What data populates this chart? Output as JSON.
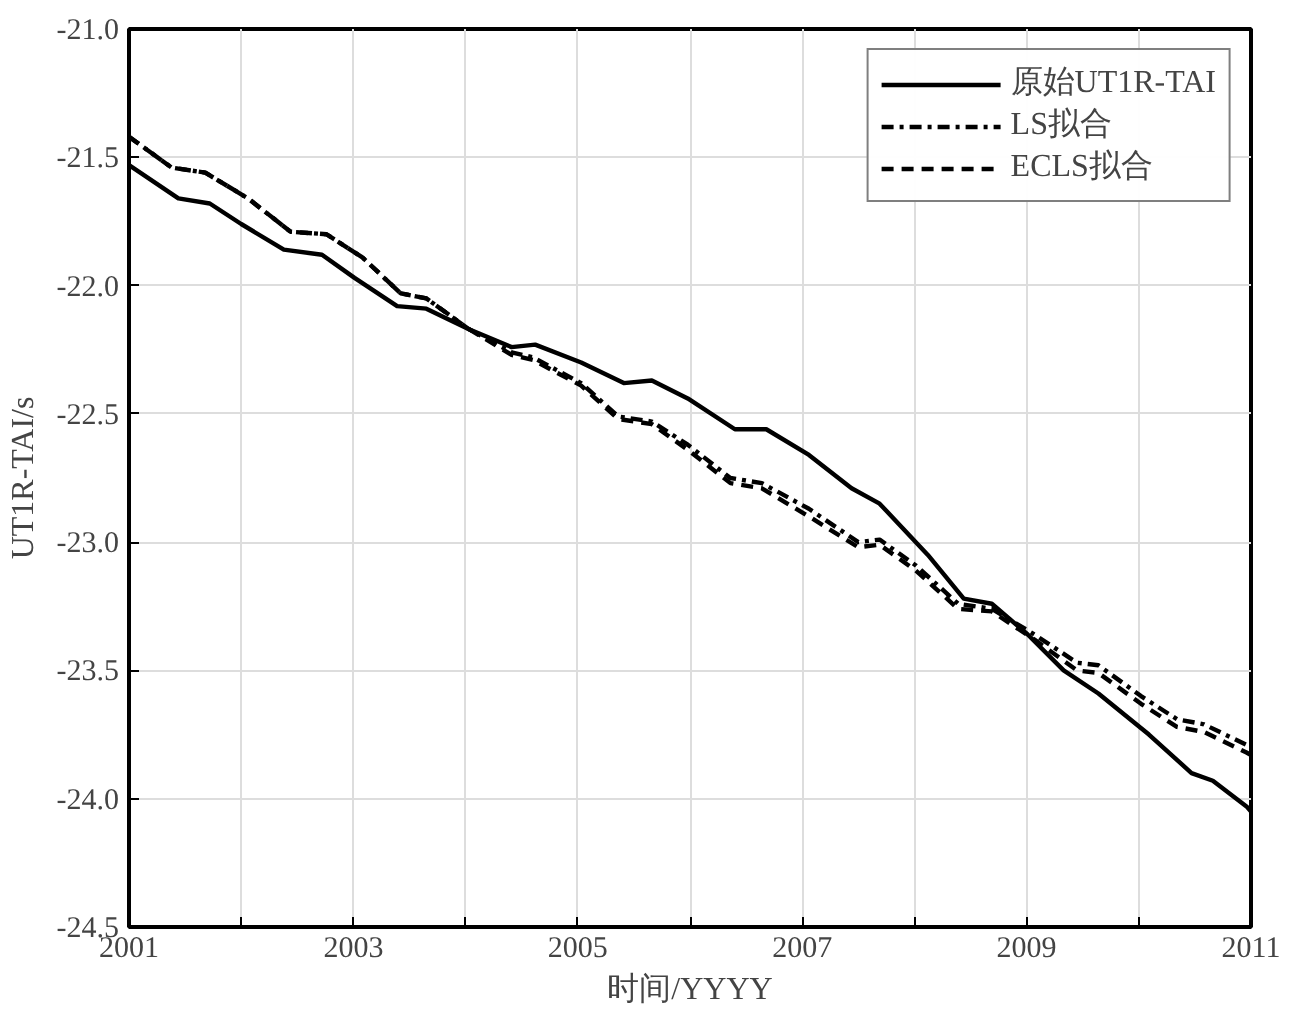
{
  "chart_data": {
    "type": "line",
    "xlabel": "时间/YYYY",
    "ylabel": "UT1R-TAI/s",
    "xlim": [
      2001,
      2011
    ],
    "ylim": [
      -24.5,
      -21.0
    ],
    "xticks": [
      2001,
      {
        "value": 2002,
        "label": null
      },
      2003,
      {
        "value": 2004,
        "label": null
      },
      2005,
      {
        "value": 2006,
        "label": null
      },
      2007,
      {
        "value": 2008,
        "label": null
      },
      2009,
      {
        "value": 2010,
        "label": null
      },
      2011
    ],
    "yticks": [
      {
        "value": -24.5,
        "label": "-24.5"
      },
      {
        "value": -24.0,
        "label": "-24.0"
      },
      {
        "value": -23.5,
        "label": "-23.5"
      },
      {
        "value": -23.0,
        "label": "-23.0"
      },
      {
        "value": -22.5,
        "label": "-22.5"
      },
      {
        "value": -22.0,
        "label": "-22.0"
      },
      {
        "value": -21.5,
        "label": "-21.5"
      },
      {
        "value": -21.0,
        "label": "-21.0"
      }
    ],
    "grid": true,
    "legend": "top right",
    "series": [
      {
        "name": "原始UT1R-TAI",
        "color": "#000000",
        "line_style": "solid",
        "x": [
          2001.0,
          2001.44,
          2001.72,
          2002.0,
          2002.38,
          2002.72,
          2003.01,
          2003.39,
          2003.65,
          2004.03,
          2004.41,
          2004.62,
          2005.03,
          2005.41,
          2005.66,
          2005.98,
          2006.4,
          2006.68,
          2007.06,
          2007.44,
          2007.69,
          2008.12,
          2008.44,
          2008.69,
          2009.01,
          2009.33,
          2009.64,
          2010.09,
          2010.47,
          2010.66,
          2010.96,
          2011.0
        ],
        "values": [
          -21.53,
          -21.66,
          -21.68,
          -21.76,
          -21.86,
          -21.88,
          -21.97,
          -22.08,
          -22.09,
          -22.17,
          -22.24,
          -22.23,
          -22.3,
          -22.38,
          -22.37,
          -22.44,
          -22.56,
          -22.56,
          -22.66,
          -22.79,
          -22.85,
          -23.05,
          -23.22,
          -23.24,
          -23.36,
          -23.5,
          -23.59,
          -23.75,
          -23.9,
          -23.93,
          -24.03,
          -24.05
        ]
      },
      {
        "name": "LS拟合",
        "color": "#000000",
        "line_style": "dashdot",
        "x": [
          2001.0,
          2001.38,
          2001.68,
          2002.06,
          2002.44,
          2002.76,
          2003.08,
          2003.42,
          2003.65,
          2004.03,
          2004.41,
          2004.6,
          2005.03,
          2005.36,
          2005.66,
          2005.98,
          2006.36,
          2006.64,
          2007.06,
          2007.5,
          2007.69,
          2008.01,
          2008.39,
          2008.69,
          2009.07,
          2009.45,
          2009.64,
          2010.02,
          2010.34,
          2010.58,
          2010.96,
          2011.0
        ],
        "values": [
          -21.42,
          -21.54,
          -21.56,
          -21.66,
          -21.79,
          -21.8,
          -21.89,
          -22.03,
          -22.05,
          -22.17,
          -22.26,
          -22.28,
          -22.38,
          -22.51,
          -22.53,
          -22.62,
          -22.75,
          -22.77,
          -22.87,
          -23.0,
          -22.99,
          -23.09,
          -23.24,
          -23.26,
          -23.36,
          -23.47,
          -23.48,
          -23.6,
          -23.69,
          -23.71,
          -23.79,
          -23.8
        ]
      },
      {
        "name": "ECLS拟合",
        "color": "#000000",
        "line_style": "dashed",
        "x": [
          2001.0,
          2001.38,
          2001.68,
          2002.06,
          2002.44,
          2002.76,
          2003.08,
          2003.42,
          2003.65,
          2004.03,
          2004.41,
          2004.6,
          2005.03,
          2005.36,
          2005.66,
          2005.98,
          2006.36,
          2006.64,
          2007.06,
          2007.5,
          2007.69,
          2008.01,
          2008.39,
          2008.69,
          2009.07,
          2009.45,
          2009.64,
          2010.02,
          2010.34,
          2010.58,
          2010.96,
          2011.0
        ],
        "values": [
          -21.42,
          -21.54,
          -21.56,
          -21.66,
          -21.79,
          -21.8,
          -21.89,
          -22.03,
          -22.05,
          -22.17,
          -22.27,
          -22.29,
          -22.39,
          -22.52,
          -22.54,
          -22.64,
          -22.77,
          -22.79,
          -22.9,
          -23.02,
          -23.01,
          -23.11,
          -23.26,
          -23.27,
          -23.38,
          -23.5,
          -23.51,
          -23.63,
          -23.72,
          -23.74,
          -23.82,
          -23.83
        ]
      }
    ]
  }
}
